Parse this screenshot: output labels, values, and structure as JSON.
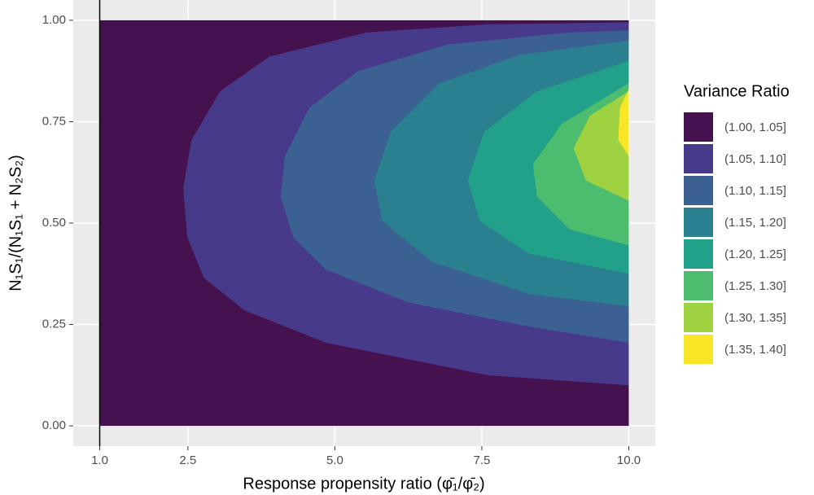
{
  "chart_data": {
    "type": "filled-contour",
    "xlabel": "Response propensity ratio (φ̄₁/φ̄₂)",
    "ylabel": "N₁S₁/(N₁S₁ + N₂S₂)",
    "legend_title": "Variance Ratio",
    "legend_position": "right",
    "xlim": [
      0.55,
      10.45
    ],
    "ylim": [
      -0.05,
      1.05
    ],
    "xticks": [
      {
        "value": 1,
        "label": "1.0"
      },
      {
        "value": 2.5,
        "label": "2.5"
      },
      {
        "value": 5,
        "label": "5.0"
      },
      {
        "value": 7.5,
        "label": "7.5"
      },
      {
        "value": 10,
        "label": "10.0"
      }
    ],
    "yticks": [
      {
        "value": 0,
        "label": "0.00"
      },
      {
        "value": 0.25,
        "label": "0.25"
      },
      {
        "value": 0.5,
        "label": "0.50"
      },
      {
        "value": 0.75,
        "label": "0.75"
      },
      {
        "value": 1,
        "label": "1.00"
      }
    ],
    "vline": 1,
    "grid": true,
    "levels": [
      {
        "name": "(1.00, 1.05]",
        "color": "#45124f",
        "x": [
          1,
          10,
          10,
          1
        ],
        "y": [
          0,
          0,
          1,
          1
        ]
      },
      {
        "name": "(1.05, 1.10]",
        "color": "#483a8a",
        "x": [
          10,
          7.6,
          4.85,
          3.46,
          2.77,
          2.49,
          2.42,
          2.56,
          3.05,
          3.88,
          5.54,
          7.6,
          10
        ],
        "y": [
          0.1,
          0.125,
          0.205,
          0.285,
          0.365,
          0.465,
          0.585,
          0.705,
          0.825,
          0.91,
          0.97,
          0.99,
          0.995
        ]
      },
      {
        "name": "(1.10, 1.15]",
        "color": "#3b6192",
        "x": [
          10,
          8.3,
          6.23,
          4.85,
          4.29,
          4.08,
          4.15,
          4.57,
          5.4,
          6.92,
          8.99,
          10
        ],
        "y": [
          0.205,
          0.245,
          0.305,
          0.385,
          0.465,
          0.565,
          0.665,
          0.785,
          0.875,
          0.94,
          0.97,
          0.975
        ]
      },
      {
        "name": "(1.15, 1.20]",
        "color": "#2b8090",
        "x": [
          10,
          8.3,
          6.64,
          5.81,
          5.67,
          5.95,
          6.78,
          8.16,
          10
        ],
        "y": [
          0.295,
          0.325,
          0.405,
          0.505,
          0.605,
          0.725,
          0.845,
          0.915,
          0.95
        ]
      },
      {
        "name": "(1.20, 1.25]",
        "color": "#21a08a",
        "x": [
          10,
          8.3,
          7.47,
          7.26,
          7.54,
          8.44,
          10
        ],
        "y": [
          0.375,
          0.425,
          0.505,
          0.605,
          0.725,
          0.825,
          0.9
        ]
      },
      {
        "name": "(1.25, 1.30]",
        "color": "#4cbd6e",
        "x": [
          10,
          8.99,
          8.44,
          8.37,
          8.86,
          10
        ],
        "y": [
          0.445,
          0.485,
          0.565,
          0.645,
          0.745,
          0.845
        ]
      },
      {
        "name": "(1.30, 1.35]",
        "color": "#9fd240",
        "x": [
          10,
          9.27,
          9.06,
          9.34,
          10
        ],
        "y": [
          0.555,
          0.605,
          0.685,
          0.765,
          0.825
        ]
      },
      {
        "name": "(1.35, 1.40]",
        "color": "#f8e626",
        "x": [
          10,
          9.82,
          9.85,
          10
        ],
        "y": [
          0.665,
          0.705,
          0.785,
          0.83
        ]
      }
    ]
  }
}
